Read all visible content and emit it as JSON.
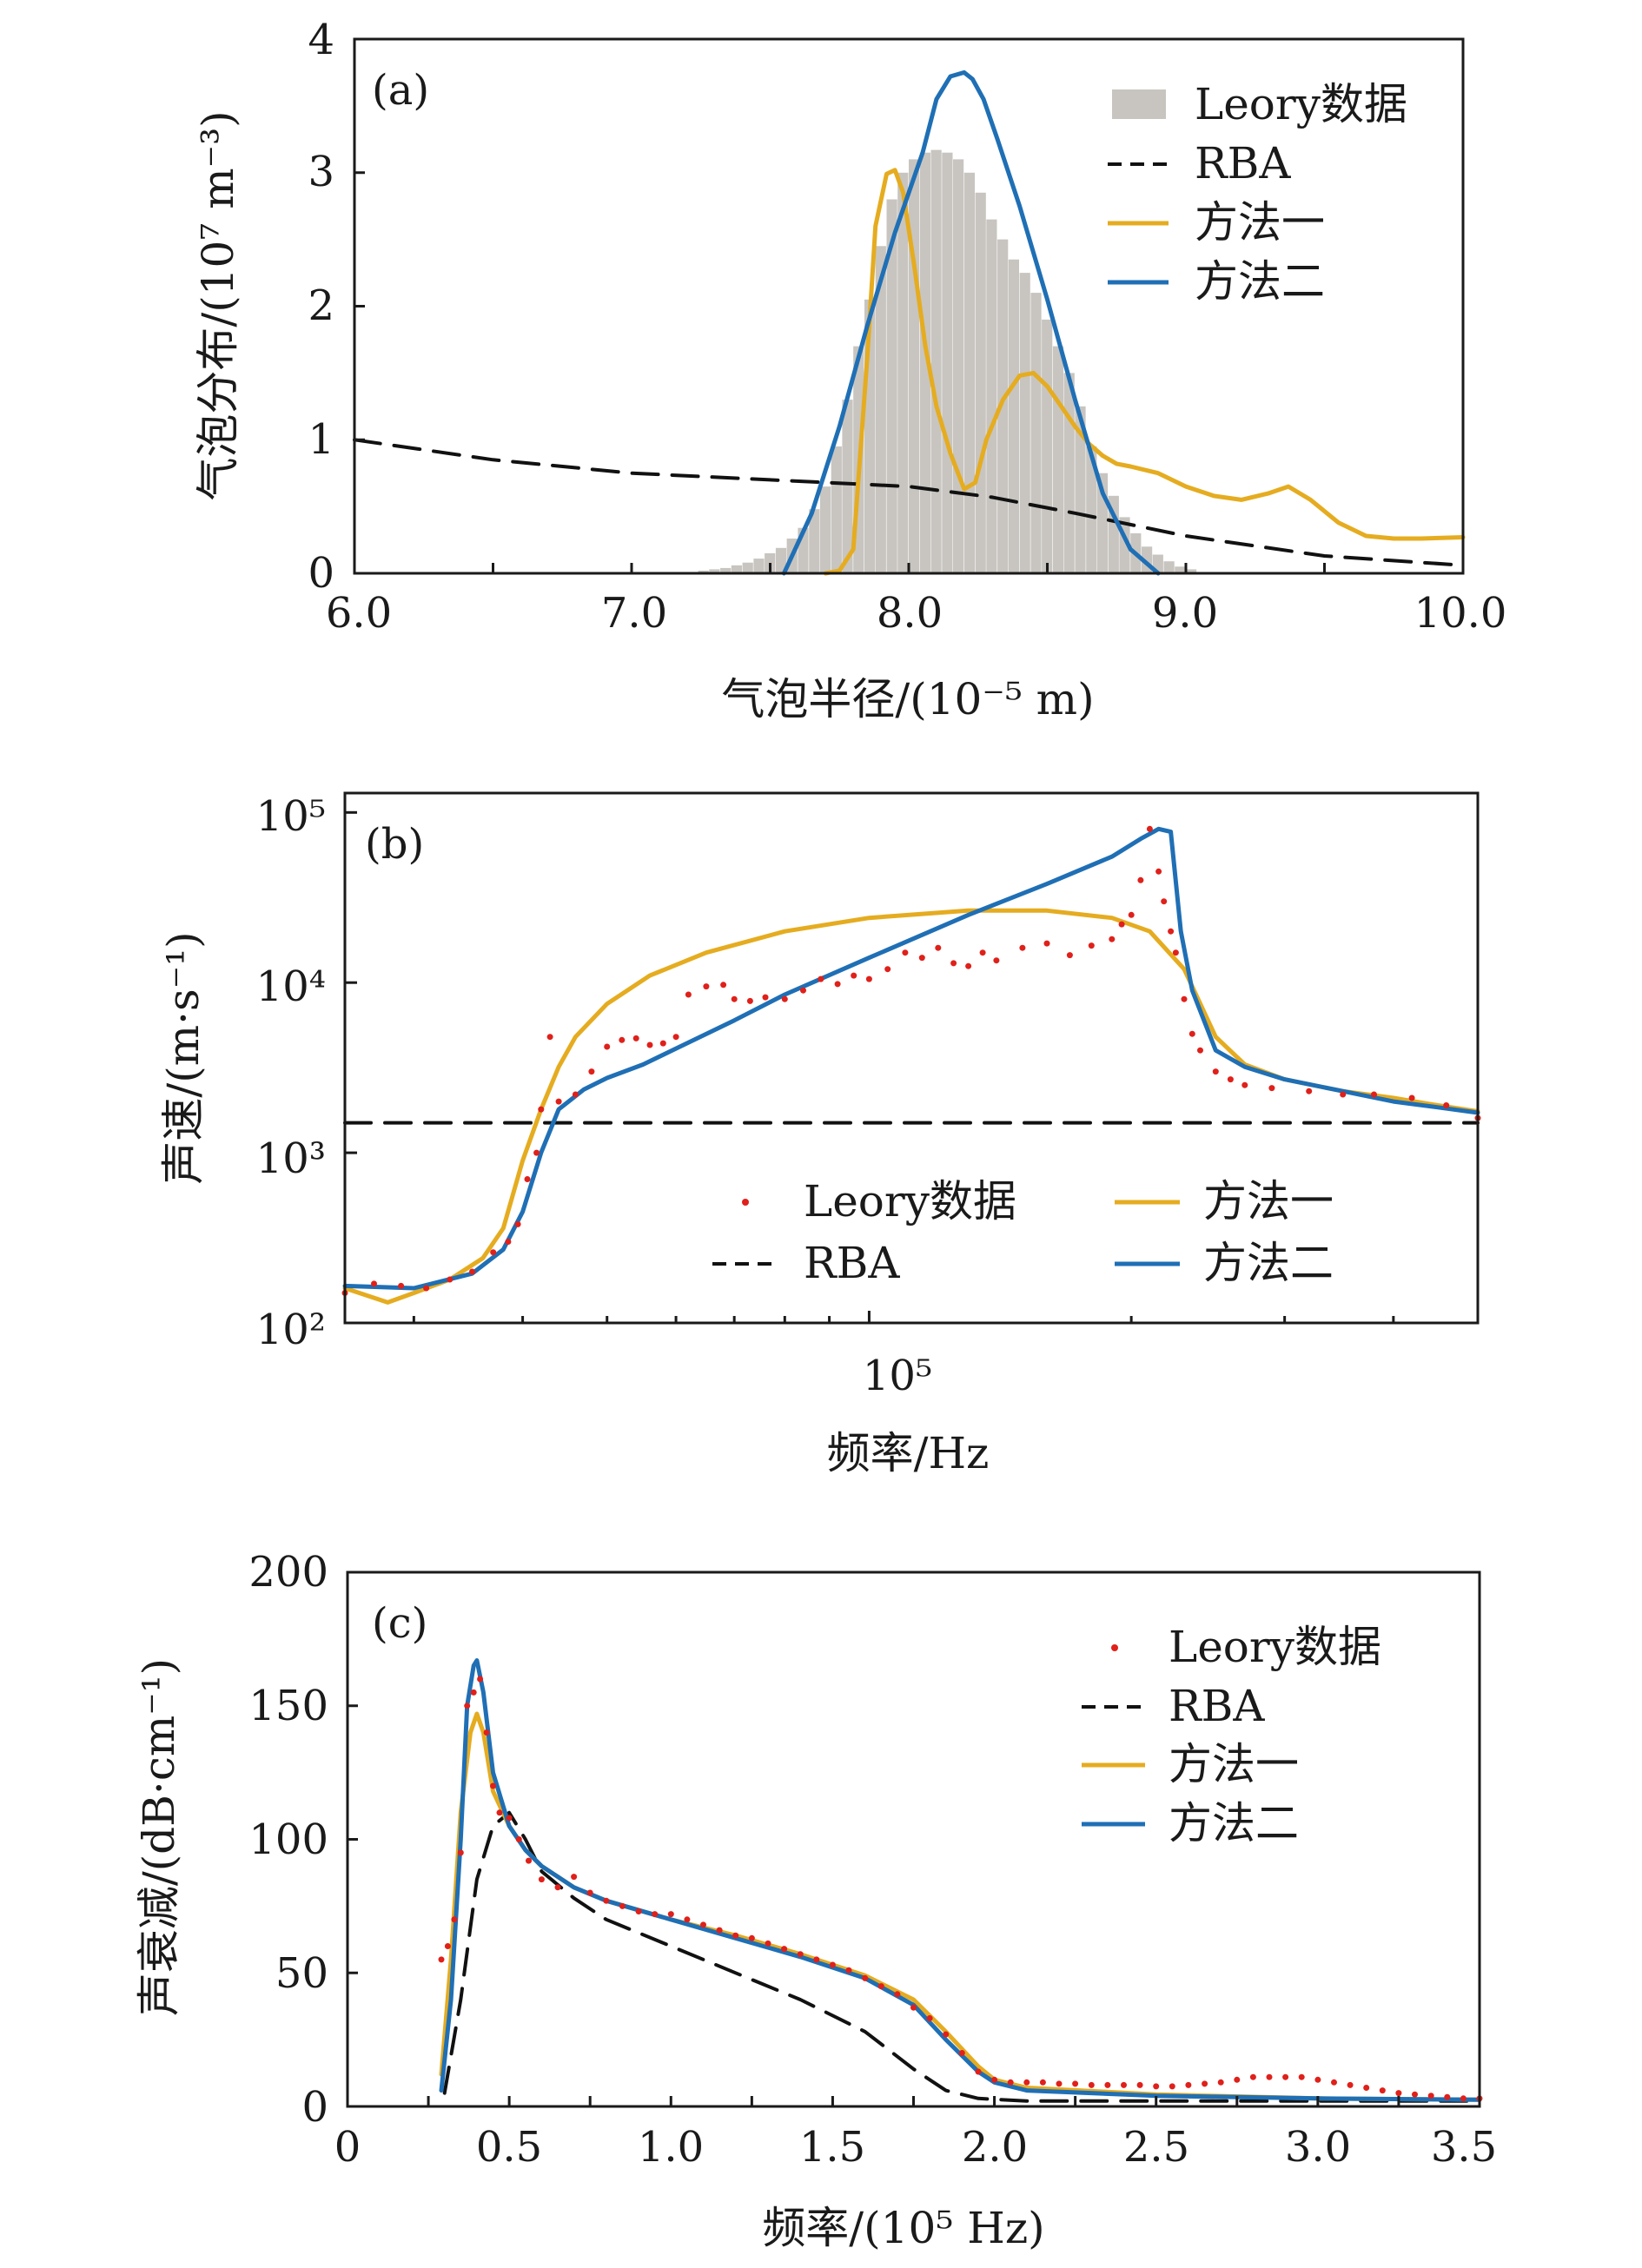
{
  "colors": {
    "leory": "#c8c5c0",
    "rba": "#111111",
    "method1": "#e5ac20",
    "method2": "#1f6fb5",
    "points": "#e0201a"
  },
  "chart_data": [
    {
      "id": "a",
      "type": "bar+line",
      "panel_label": "(a)",
      "xlabel": "气泡半径/(10⁻⁵ m)",
      "ylabel": "气泡分布/(10⁷ m⁻³)",
      "xlim": [
        6.0,
        10.0
      ],
      "ylim": [
        0,
        4
      ],
      "xticks": [
        "6.0",
        "7.0",
        "8.0",
        "9.0",
        "10.0"
      ],
      "yticks": [
        "0",
        "1",
        "2",
        "3",
        "4"
      ],
      "legend": [
        "Leory数据",
        "RBA",
        "方法一",
        "方法二"
      ],
      "bars": {
        "name": "Leory数据",
        "width": 0.04,
        "x": [
          7.22,
          7.26,
          7.3,
          7.34,
          7.38,
          7.42,
          7.46,
          7.5,
          7.54,
          7.58,
          7.62,
          7.66,
          7.7,
          7.74,
          7.78,
          7.82,
          7.86,
          7.9,
          7.94,
          7.98,
          8.02,
          8.06,
          8.1,
          8.14,
          8.18,
          8.22,
          8.26,
          8.3,
          8.34,
          8.38,
          8.42,
          8.46,
          8.5,
          8.54,
          8.58,
          8.62,
          8.66,
          8.7,
          8.74,
          8.78,
          8.82,
          8.86,
          8.9,
          8.94,
          8.98,
          9.02,
          9.06
        ],
        "values": [
          0.01,
          0.02,
          0.03,
          0.04,
          0.06,
          0.08,
          0.11,
          0.15,
          0.19,
          0.26,
          0.34,
          0.48,
          0.65,
          0.95,
          1.3,
          1.7,
          2.05,
          2.45,
          2.8,
          3.0,
          3.1,
          3.15,
          3.17,
          3.15,
          3.1,
          3.0,
          2.85,
          2.65,
          2.5,
          2.35,
          2.25,
          2.1,
          1.9,
          1.7,
          1.5,
          1.25,
          0.95,
          0.75,
          0.58,
          0.42,
          0.3,
          0.2,
          0.14,
          0.09,
          0.05,
          0.03,
          0.01
        ]
      },
      "series": [
        {
          "name": "RBA",
          "style": "dashed",
          "x": [
            6.0,
            6.5,
            7.0,
            7.5,
            8.0,
            8.3,
            8.6,
            9.0,
            9.5,
            10.0
          ],
          "y": [
            1.0,
            0.85,
            0.75,
            0.7,
            0.65,
            0.57,
            0.45,
            0.28,
            0.13,
            0.06
          ]
        },
        {
          "name": "方法一",
          "style": "solid",
          "x": [
            7.7,
            7.75,
            7.8,
            7.85,
            7.88,
            7.92,
            7.95,
            7.98,
            8.02,
            8.06,
            8.1,
            8.15,
            8.2,
            8.24,
            8.28,
            8.34,
            8.4,
            8.45,
            8.5,
            8.55,
            8.6,
            8.65,
            8.7,
            8.75,
            8.8,
            8.9,
            9.0,
            9.1,
            9.2,
            9.3,
            9.37,
            9.45,
            9.55,
            9.65,
            9.75,
            9.85,
            10.0
          ],
          "y": [
            0.0,
            0.02,
            0.18,
            1.6,
            2.6,
            2.99,
            3.02,
            2.85,
            2.3,
            1.7,
            1.25,
            0.9,
            0.63,
            0.68,
            1.0,
            1.3,
            1.48,
            1.5,
            1.4,
            1.25,
            1.1,
            0.97,
            0.88,
            0.82,
            0.8,
            0.75,
            0.65,
            0.58,
            0.55,
            0.6,
            0.65,
            0.55,
            0.38,
            0.28,
            0.26,
            0.26,
            0.27
          ]
        },
        {
          "name": "方法二",
          "style": "solid",
          "x": [
            7.55,
            7.65,
            7.75,
            7.85,
            7.95,
            8.05,
            8.1,
            8.15,
            8.2,
            8.23,
            8.27,
            8.32,
            8.4,
            8.5,
            8.6,
            8.7,
            8.8,
            8.9
          ],
          "y": [
            0.0,
            0.45,
            1.1,
            1.85,
            2.55,
            3.15,
            3.55,
            3.72,
            3.75,
            3.7,
            3.55,
            3.25,
            2.75,
            2.05,
            1.3,
            0.6,
            0.18,
            0.0
          ]
        }
      ]
    },
    {
      "id": "b",
      "type": "line+scatter",
      "panel_label": "(b)",
      "xlabel": "频率/Hz",
      "ylabel": "声速/(m·s⁻¹)",
      "xscale": "log",
      "yscale": "log",
      "xlim": [
        25000,
        500000
      ],
      "ylim": [
        100,
        130000
      ],
      "xtick_major": "10⁵",
      "yticks": [
        "10²",
        "10³",
        "10⁴",
        "10⁵"
      ],
      "legend": [
        "Leory数据",
        "RBA",
        "方法一",
        "方法二"
      ],
      "series": [
        {
          "name": "RBA",
          "style": "dashed",
          "x": [
            25000,
            500000
          ],
          "y": [
            1500,
            1500
          ]
        },
        {
          "name": "方法一",
          "style": "solid",
          "x": [
            25000,
            28000,
            30000,
            33000,
            36000,
            38000,
            40000,
            42000,
            44000,
            46000,
            50000,
            56000,
            65000,
            80000,
            100000,
            130000,
            160000,
            190000,
            210000,
            230000,
            250000,
            270000,
            300000,
            350000,
            400000,
            450000,
            500000
          ],
          "y": [
            160,
            132,
            150,
            180,
            240,
            360,
            900,
            1800,
            3200,
            4800,
            7500,
            11000,
            15000,
            20000,
            24000,
            26500,
            26500,
            24000,
            20000,
            12000,
            4800,
            3300,
            2700,
            2300,
            2100,
            1900,
            1750
          ]
        },
        {
          "name": "方法二",
          "style": "solid",
          "x": [
            25000,
            30000,
            35000,
            38000,
            40000,
            42000,
            44000,
            47000,
            50000,
            55000,
            60000,
            70000,
            80000,
            100000,
            130000,
            160000,
            190000,
            205000,
            215000,
            222000,
            228000,
            235000,
            250000,
            270000,
            300000,
            350000,
            400000,
            450000,
            500000
          ],
          "y": [
            165,
            160,
            195,
            270,
            450,
            1000,
            1800,
            2350,
            2750,
            3300,
            4100,
            6000,
            8500,
            14000,
            25000,
            38000,
            55000,
            70000,
            80000,
            77000,
            20000,
            9000,
            4000,
            3200,
            2700,
            2300,
            2000,
            1850,
            1720
          ]
        }
      ],
      "points": {
        "name": "Leory数据",
        "x": [
          25000,
          27000,
          29000,
          31000,
          33000,
          35000,
          37000,
          38500,
          39500,
          40500,
          41500,
          42000,
          43000,
          44000,
          46000,
          48000,
          50000,
          52000,
          54000,
          56000,
          58000,
          60000,
          62000,
          65000,
          68000,
          70000,
          73000,
          76000,
          80000,
          84000,
          88000,
          92000,
          96000,
          100000,
          105000,
          110000,
          115000,
          120000,
          125000,
          130000,
          135000,
          140000,
          150000,
          160000,
          170000,
          180000,
          190000,
          195000,
          200000,
          205000,
          210000,
          215000,
          218000,
          222000,
          225000,
          230000,
          235000,
          240000,
          250000,
          260000,
          270000,
          290000,
          320000,
          350000,
          380000,
          420000,
          460000,
          500000
        ],
        "y": [
          150,
          170,
          165,
          160,
          180,
          200,
          260,
          300,
          380,
          700,
          1000,
          1800,
          4800,
          2000,
          2200,
          3000,
          4200,
          4600,
          4700,
          4300,
          4400,
          4800,
          8500,
          9500,
          9700,
          8000,
          7800,
          8200,
          8000,
          9000,
          10500,
          9800,
          11000,
          10500,
          12000,
          15000,
          14000,
          16000,
          13000,
          12500,
          15000,
          13500,
          16000,
          17000,
          14500,
          16500,
          18000,
          22000,
          25000,
          40000,
          80000,
          45000,
          30000,
          20000,
          15000,
          8000,
          5000,
          4000,
          3000,
          2700,
          2500,
          2400,
          2300,
          2200,
          2200,
          2100,
          1900,
          1600
        ]
      }
    },
    {
      "id": "c",
      "type": "line+scatter",
      "panel_label": "(c)",
      "xlabel": "频率/(10⁵ Hz)",
      "ylabel": "声衰减/(dB·cm⁻¹)",
      "xlim": [
        0,
        3.5
      ],
      "ylim": [
        0,
        200
      ],
      "xticks": [
        "0",
        "0.5",
        "1.0",
        "1.5",
        "2.0",
        "2.5",
        "3.0",
        "3.5"
      ],
      "yticks": [
        "0",
        "50",
        "100",
        "150",
        "200"
      ],
      "legend": [
        "Leory数据",
        "RBA",
        "方法一",
        "方法二"
      ],
      "series": [
        {
          "name": "RBA",
          "style": "dashed",
          "x": [
            0.3,
            0.35,
            0.4,
            0.45,
            0.5,
            0.55,
            0.6,
            0.7,
            0.8,
            1.0,
            1.2,
            1.4,
            1.6,
            1.75,
            1.85,
            1.95,
            2.1,
            2.5,
            3.0,
            3.5
          ],
          "y": [
            5,
            40,
            85,
            105,
            110,
            100,
            88,
            78,
            70,
            60,
            50,
            40,
            28,
            14,
            6,
            3,
            2,
            2,
            2,
            2
          ]
        },
        {
          "name": "方法一",
          "style": "solid",
          "x": [
            0.29,
            0.32,
            0.35,
            0.38,
            0.4,
            0.42,
            0.45,
            0.5,
            0.55,
            0.6,
            0.7,
            0.8,
            1.0,
            1.2,
            1.4,
            1.6,
            1.75,
            1.85,
            1.95,
            2.0,
            2.1,
            2.5,
            3.0,
            3.5
          ],
          "y": [
            12,
            55,
            110,
            140,
            147,
            140,
            118,
            105,
            96,
            90,
            82,
            77,
            70,
            64,
            57,
            49,
            40,
            28,
            15,
            10,
            7,
            4.5,
            3,
            2.5
          ]
        },
        {
          "name": "方法二",
          "style": "solid",
          "x": [
            0.29,
            0.32,
            0.35,
            0.37,
            0.39,
            0.4,
            0.42,
            0.45,
            0.5,
            0.55,
            0.6,
            0.7,
            0.8,
            1.0,
            1.2,
            1.4,
            1.6,
            1.75,
            1.85,
            1.95,
            2.0,
            2.1,
            2.5,
            3.0,
            3.5
          ],
          "y": [
            6,
            40,
            100,
            150,
            165,
            167,
            155,
            125,
            105,
            96,
            90,
            82,
            77,
            70,
            63,
            56,
            48,
            38,
            25,
            13,
            9,
            6,
            4,
            3,
            2.5
          ]
        }
      ],
      "points": {
        "name": "Leory数据",
        "x": [
          0.29,
          0.31,
          0.33,
          0.35,
          0.37,
          0.39,
          0.41,
          0.43,
          0.45,
          0.47,
          0.5,
          0.53,
          0.56,
          0.6,
          0.65,
          0.7,
          0.75,
          0.8,
          0.85,
          0.9,
          0.95,
          1.0,
          1.05,
          1.1,
          1.15,
          1.2,
          1.25,
          1.3,
          1.35,
          1.4,
          1.45,
          1.5,
          1.55,
          1.6,
          1.65,
          1.7,
          1.75,
          1.8,
          1.85,
          1.9,
          1.95,
          2.0,
          2.05,
          2.1,
          2.15,
          2.2,
          2.25,
          2.3,
          2.35,
          2.4,
          2.45,
          2.5,
          2.55,
          2.6,
          2.65,
          2.7,
          2.75,
          2.8,
          2.85,
          2.9,
          2.95,
          3.0,
          3.05,
          3.1,
          3.15,
          3.2,
          3.25,
          3.3,
          3.35,
          3.4,
          3.45,
          3.5
        ],
        "y": [
          55,
          60,
          70,
          95,
          150,
          155,
          160,
          140,
          120,
          110,
          108,
          100,
          92,
          85,
          82,
          86,
          80,
          77,
          75,
          73,
          72,
          72,
          70,
          68,
          66,
          64,
          63,
          61,
          59,
          57,
          55,
          53,
          51,
          48,
          45,
          42,
          37,
          33,
          27,
          20,
          13,
          10,
          9,
          9,
          9,
          8.5,
          8.5,
          8,
          8,
          8,
          8,
          7.5,
          7.5,
          8,
          8.5,
          9,
          10,
          11,
          11,
          11,
          11,
          10,
          9,
          8,
          7,
          6,
          5,
          4.5,
          4,
          3.5,
          3,
          3
        ]
      }
    }
  ]
}
